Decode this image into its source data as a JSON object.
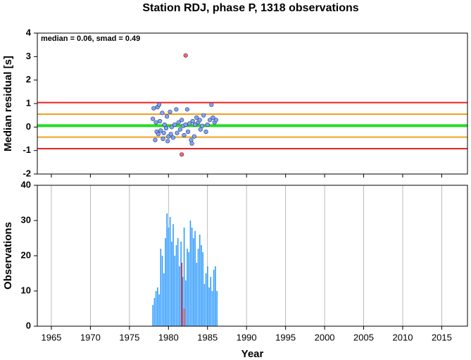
{
  "chart_data": [
    {
      "type": "scatter",
      "title": "Station RDJ, phase P, 1318 observations",
      "annotation": "median = 0.06, smad = 0.49",
      "y_label": "Median residual [s]",
      "xlim": [
        1963.2,
        2018.3
      ],
      "xticks": [
        1965,
        1970,
        1975,
        1980,
        1985,
        1990,
        1995,
        2000,
        2005,
        2010,
        2015
      ],
      "ylim": [
        -2,
        4
      ],
      "yticks": [
        -2,
        -1,
        0,
        1,
        2,
        3,
        4
      ],
      "hlines": [
        {
          "value": 1.04,
          "color": "#ee2222"
        },
        {
          "value": 0.55,
          "color": "#f0a020"
        },
        {
          "value": 0.06,
          "color": "#22dd22"
        },
        {
          "value": -0.43,
          "color": "#f0a020"
        },
        {
          "value": -0.92,
          "color": "#ee2222"
        }
      ],
      "series": [
        {
          "color": "#7aa6ff",
          "x": [
            1978.0,
            1978.1,
            1978.3,
            1978.4,
            1978.5,
            1978.6,
            1978.7,
            1978.8,
            1978.9,
            1979.0,
            1979.2,
            1979.3,
            1979.4,
            1979.5,
            1979.7,
            1979.8,
            1979.9,
            1980.0,
            1980.2,
            1980.3,
            1980.4,
            1980.6,
            1980.8,
            1981.0,
            1981.1,
            1981.3,
            1981.5,
            1981.7,
            1981.9,
            1982.0,
            1982.2,
            1982.4,
            1982.5,
            1982.7,
            1982.9,
            1983.0,
            1983.1,
            1983.3,
            1983.4,
            1983.6,
            1983.8,
            1984.0,
            1984.1,
            1984.3,
            1984.5,
            1984.8,
            1985.0,
            1985.3,
            1985.5,
            1985.7,
            1985.9,
            1986.1
          ],
          "values": [
            0.35,
            0.8,
            -0.55,
            0.2,
            -0.2,
            0.85,
            -0.3,
            0.95,
            0.25,
            -0.15,
            0.6,
            -0.5,
            -0.25,
            0.1,
            -0.05,
            0.45,
            -0.6,
            -0.4,
            0.65,
            -0.3,
            0.0,
            -0.45,
            0.1,
            0.75,
            -0.25,
            0.2,
            -0.1,
            0.3,
            0.05,
            -0.35,
            0.1,
            0.75,
            -0.2,
            0.15,
            -0.55,
            -0.7,
            0.25,
            -0.4,
            0.1,
            0.4,
            0.2,
            0.3,
            -0.1,
            0.05,
            0.5,
            -0.2,
            0.1,
            0.3,
            0.95,
            0.4,
            0.2,
            0.3
          ]
        },
        {
          "color": "#ff6666",
          "x": [
            1982.2,
            1981.7
          ],
          "values": [
            3.05,
            -1.17
          ]
        }
      ]
    },
    {
      "type": "bar",
      "y_label": "Observations",
      "x_label": "Year",
      "xlim": [
        1963.2,
        2018.3
      ],
      "xticks": [
        1965,
        1970,
        1975,
        1980,
        1985,
        1990,
        1995,
        2000,
        2005,
        2010,
        2015
      ],
      "ylim": [
        0,
        40
      ],
      "yticks": [
        0,
        10,
        20,
        30,
        40
      ],
      "grid": true,
      "series": [
        {
          "color": "#2f9bff",
          "x": [
            1978.0,
            1978.2,
            1978.4,
            1978.6,
            1978.8,
            1979.0,
            1979.2,
            1979.4,
            1979.6,
            1979.8,
            1980.0,
            1980.2,
            1980.4,
            1980.6,
            1980.8,
            1981.0,
            1981.2,
            1981.4,
            1981.6,
            1981.8,
            1982.0,
            1982.2,
            1982.4,
            1982.6,
            1982.8,
            1983.0,
            1983.2,
            1983.4,
            1983.6,
            1983.8,
            1984.0,
            1984.2,
            1984.4,
            1984.6,
            1984.8,
            1985.0,
            1985.2,
            1985.4,
            1985.6,
            1985.8,
            1986.0,
            1986.2
          ],
          "values": [
            6,
            8,
            10,
            11,
            9,
            22,
            20,
            15,
            25,
            32,
            28,
            31,
            24,
            29,
            20,
            23,
            25,
            17,
            24,
            14,
            28,
            13,
            22,
            21,
            30,
            28,
            25,
            27,
            18,
            22,
            26,
            23,
            21,
            12,
            15,
            17,
            11,
            14,
            10,
            16,
            17,
            10
          ]
        },
        {
          "color": "#ee2222",
          "x": [
            1981.7,
            1982.0
          ],
          "values": [
            18,
            5
          ]
        }
      ]
    }
  ]
}
